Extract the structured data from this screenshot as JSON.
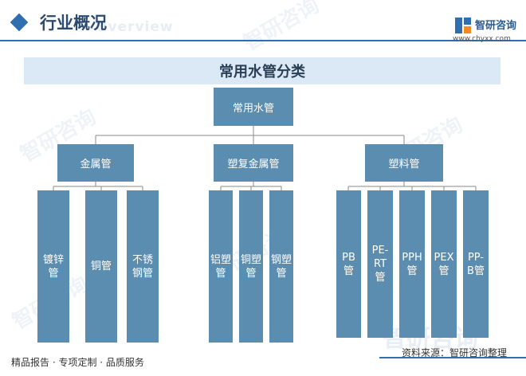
{
  "header": {
    "title": "行业概况",
    "subtitle": "Overview",
    "brand_name": "智研咨询",
    "brand_url": "www.chyxx.com"
  },
  "diagram": {
    "title": "常用水管分类",
    "root": "常用水管",
    "categories": [
      {
        "label": "金属管",
        "children": [
          "镀锌管",
          "铜管",
          "不锈钢管"
        ]
      },
      {
        "label": "塑复金属管",
        "children": [
          "铝塑管",
          "铜塑管",
          "钢塑管"
        ]
      },
      {
        "label": "塑料管",
        "children": [
          "PB管",
          "PE-RT管",
          "PPH管",
          "PEX管",
          "PP-B管"
        ]
      }
    ]
  },
  "footer": {
    "left": "精品报告 · 专项定制 · 品质服务",
    "source": "资料来源：智研咨询整理"
  },
  "colors": {
    "box": "#5b8db0",
    "accent": "#2f6fb0",
    "banner": "#dbe9f6"
  }
}
